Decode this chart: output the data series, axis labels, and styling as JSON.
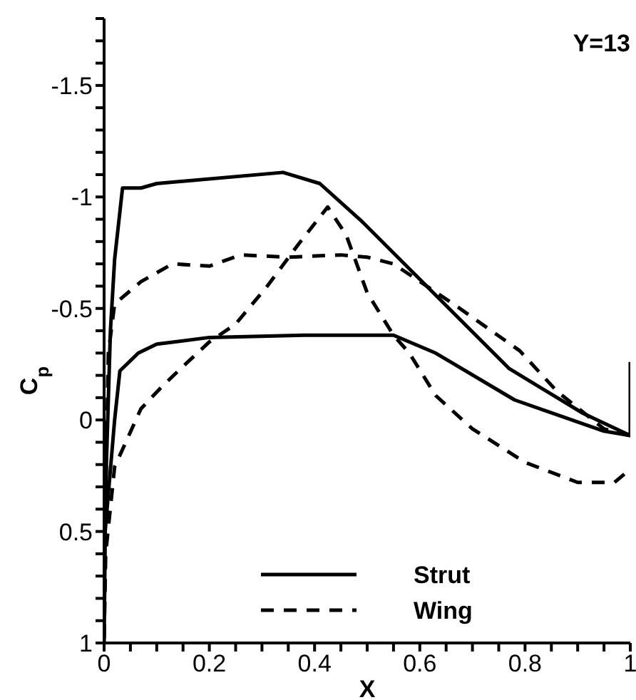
{
  "chart_data": {
    "type": "line",
    "title": "Y=13",
    "xlabel": "X",
    "ylabel": "C$_{p}$",
    "xlim": [
      0,
      1
    ],
    "ylim": [
      1,
      -1.8
    ],
    "xticks": [
      0,
      {
        "value": 0.05,
        "label": null
      },
      {
        "value": 0.1,
        "label": null
      },
      {
        "value": 0.15,
        "label": null
      },
      0.2,
      {
        "value": 0.25,
        "label": null
      },
      {
        "value": 0.3,
        "label": null
      },
      {
        "value": 0.35,
        "label": null
      },
      0.4,
      {
        "value": 0.45,
        "label": null
      },
      {
        "value": 0.5,
        "label": null
      },
      {
        "value": 0.55,
        "label": null
      },
      0.6,
      {
        "value": 0.65,
        "label": null
      },
      {
        "value": 0.7,
        "label": null
      },
      {
        "value": 0.75,
        "label": null
      },
      0.8,
      {
        "value": 0.85,
        "label": null
      },
      {
        "value": 0.9,
        "label": null
      },
      {
        "value": 0.95,
        "label": null
      },
      1
    ],
    "yticks": [
      1,
      {
        "value": 0.9,
        "label": null
      },
      {
        "value": 0.8,
        "label": null
      },
      {
        "value": 0.7,
        "label": null
      },
      {
        "value": 0.6,
        "label": null
      },
      0.5,
      {
        "value": 0.4,
        "label": null
      },
      {
        "value": 0.3,
        "label": null
      },
      {
        "value": 0.2,
        "label": null
      },
      {
        "value": 0.1,
        "label": null
      },
      0,
      {
        "value": -0.1,
        "label": null
      },
      {
        "value": -0.2,
        "label": null
      },
      {
        "value": -0.3,
        "label": null
      },
      {
        "value": -0.4,
        "label": null
      },
      -0.5,
      {
        "value": -0.6,
        "label": null
      },
      {
        "value": -0.7,
        "label": null
      },
      {
        "value": -0.8,
        "label": null
      },
      {
        "value": -0.9,
        "label": null
      },
      -1,
      {
        "value": -1.1,
        "label": null
      },
      {
        "value": -1.2,
        "label": null
      },
      {
        "value": -1.3,
        "label": null
      },
      {
        "value": -1.4,
        "label": null
      },
      -1.5,
      {
        "value": -1.6,
        "label": null
      },
      {
        "value": -1.7,
        "label": null
      },
      {
        "value": -1.8,
        "label": null
      }
    ],
    "grid": false,
    "legend": "bottom right",
    "marker": "none",
    "series": [
      {
        "name": "Strut",
        "color": "#000000",
        "line_style": "solid",
        "x": [
          1,
          1,
          0.91,
          0.77,
          0.49,
          0.41,
          0.34,
          0.1,
          0.07,
          0.035,
          0.02,
          0.012,
          0.003,
          0,
          0.002,
          0.02,
          0.03,
          0.065,
          0.1,
          0.2,
          0.38,
          0.55,
          0.63,
          0.78,
          0.95,
          1
        ],
        "values": [
          -0.26,
          0.07,
          -0.03,
          -0.23,
          -0.89,
          -1.06,
          -1.11,
          -1.06,
          -1.04,
          -1.04,
          -0.72,
          -0.4,
          0.3,
          1,
          0.5,
          0,
          -0.22,
          -0.3,
          -0.34,
          -0.37,
          -0.38,
          -0.38,
          -0.3,
          -0.09,
          0.05,
          0.07
        ]
      },
      {
        "name": "Wing",
        "color": "#000000",
        "line_style": "dashed",
        "x": [
          1,
          0.95,
          0.86,
          0.79,
          0.67,
          0.55,
          0.5,
          0.45,
          0.35,
          0.26,
          0.2,
          0.13,
          0.07,
          0.02,
          0.008,
          0.002,
          0,
          0.003,
          0.02,
          0.045,
          0.07,
          0.11,
          0.15,
          0.2,
          0.25,
          0.31,
          0.37,
          0.425,
          0.46,
          0.5,
          0.55,
          0.58,
          0.63,
          0.7,
          0.8,
          0.9,
          0.97,
          1
        ],
        "values": [
          0.07,
          0.04,
          -0.13,
          -0.31,
          -0.51,
          -0.7,
          -0.73,
          -0.74,
          -0.73,
          -0.74,
          -0.69,
          -0.7,
          -0.62,
          -0.52,
          -0.3,
          0.5,
          1,
          0.6,
          0.21,
          0.08,
          -0.05,
          -0.15,
          -0.24,
          -0.35,
          -0.43,
          -0.6,
          -0.79,
          -0.955,
          -0.83,
          -0.57,
          -0.38,
          -0.3,
          -0.11,
          0.04,
          0.19,
          0.28,
          0.28,
          0.22
        ]
      }
    ]
  }
}
